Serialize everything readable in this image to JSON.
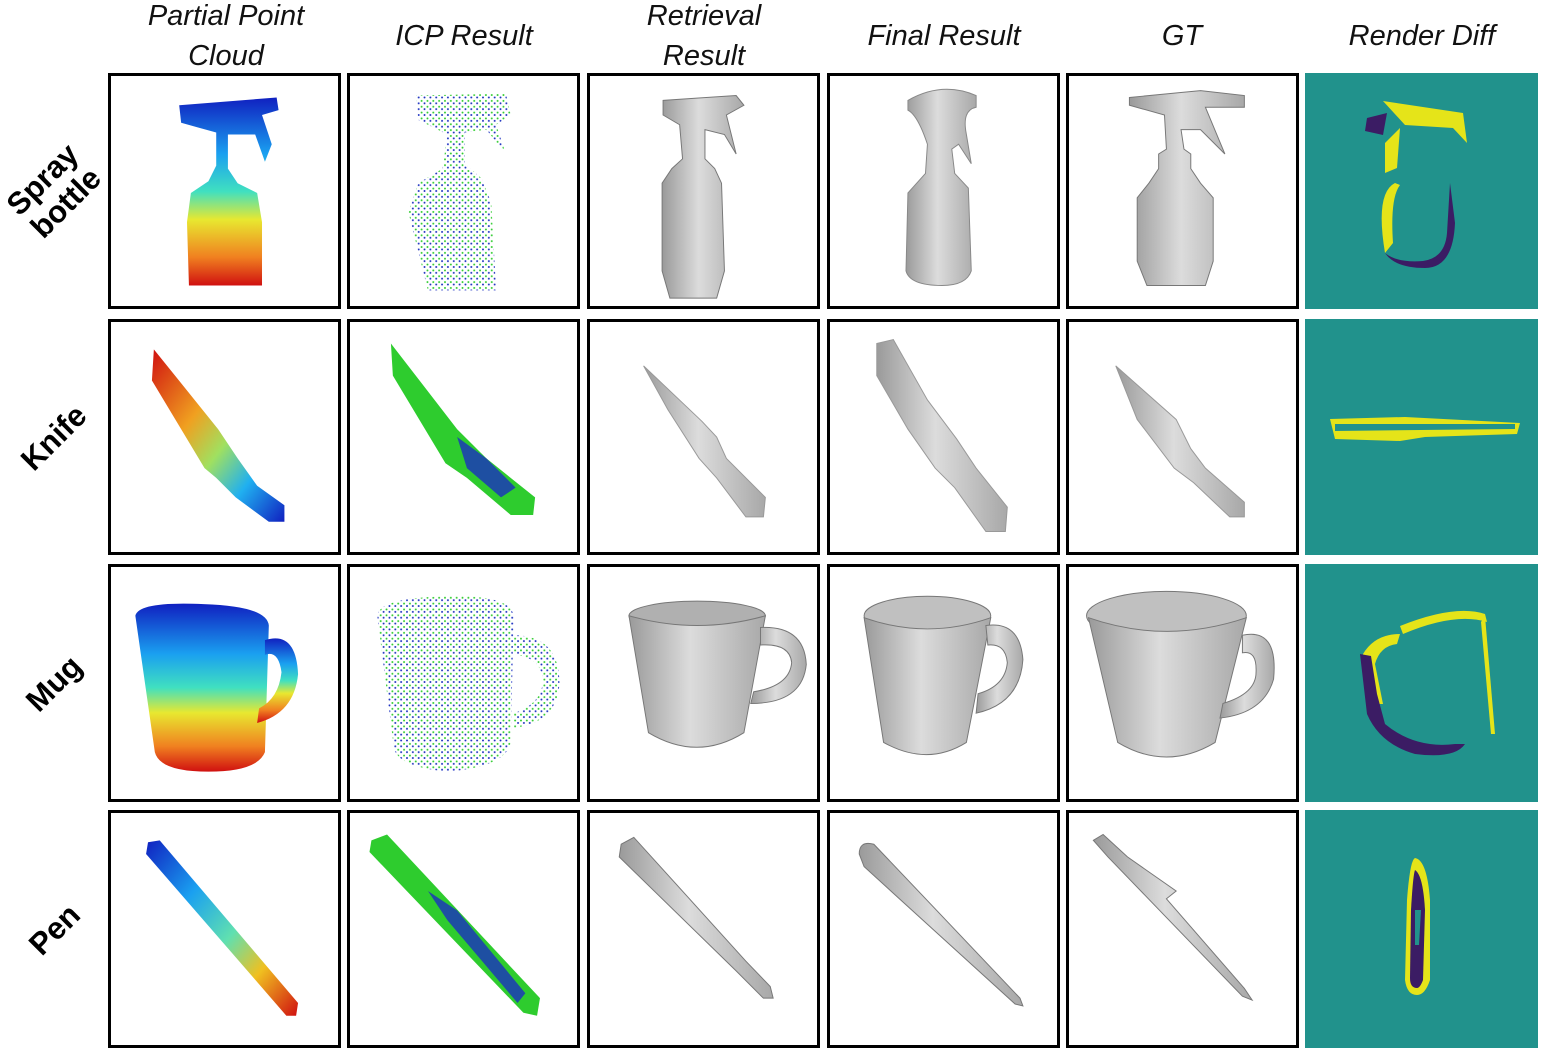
{
  "figure": {
    "columns": [
      "Partial Point\nCloud",
      "ICP Result",
      "Retrieval\nResult",
      "Final Result",
      "GT",
      "Render Diff"
    ],
    "rows": [
      "Spray\nbottle",
      "Knife",
      "Mug",
      "Pen"
    ]
  },
  "colors": {
    "diff_background": "#21928c",
    "diff_yellow": "#e5e419",
    "diff_purple": "#3b1c64",
    "icp_green": "#2ecc2e",
    "icp_blue": "#1a2fbf",
    "mesh_gray": "#c8c8c8"
  }
}
